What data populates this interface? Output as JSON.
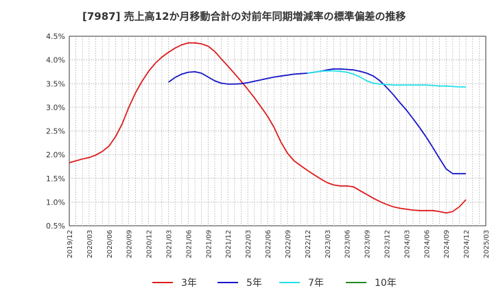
{
  "chart_data": {
    "type": "line",
    "title": "[7987]  売上高12か月移動合計の対前年同期増減率の標準偏差の推移",
    "xlabel": "",
    "ylabel": "",
    "ylim": [
      0.5,
      4.5
    ],
    "y_ticks": [
      "0.5%",
      "1.0%",
      "1.5%",
      "2.0%",
      "2.5%",
      "3.0%",
      "3.5%",
      "4.0%",
      "4.5%"
    ],
    "x_ticks": [
      "2019/12",
      "2020/03",
      "2020/06",
      "2020/09",
      "2020/12",
      "2021/03",
      "2021/06",
      "2021/09",
      "2021/12",
      "2022/03",
      "2022/06",
      "2022/09",
      "2022/12",
      "2023/03",
      "2023/06",
      "2023/09",
      "2023/12",
      "2024/03",
      "2024/06",
      "2024/09",
      "2024/12",
      "2025/03"
    ],
    "grid": true,
    "legend_position": "bottom",
    "series": [
      {
        "name": "3年",
        "color": "#dd1c1c",
        "x": [
          "2019/12",
          "2020/01",
          "2020/02",
          "2020/03",
          "2020/04",
          "2020/05",
          "2020/06",
          "2020/07",
          "2020/08",
          "2020/09",
          "2020/10",
          "2020/11",
          "2020/12",
          "2021/01",
          "2021/02",
          "2021/03",
          "2021/04",
          "2021/05",
          "2021/06",
          "2021/07",
          "2021/08",
          "2021/09",
          "2021/10",
          "2021/11",
          "2021/12",
          "2022/01",
          "2022/02",
          "2022/03",
          "2022/04",
          "2022/05",
          "2022/06",
          "2022/07",
          "2022/08",
          "2022/09",
          "2022/10",
          "2022/11",
          "2022/12",
          "2023/01",
          "2023/02",
          "2023/03",
          "2023/04",
          "2023/05",
          "2023/06",
          "2023/07",
          "2023/08",
          "2023/09",
          "2023/10",
          "2023/11",
          "2023/12",
          "2024/01",
          "2024/02",
          "2024/03",
          "2024/04",
          "2024/05",
          "2024/06",
          "2024/07",
          "2024/08",
          "2024/09",
          "2024/10",
          "2024/11",
          "2024/12"
        ],
        "values": [
          1.83,
          1.87,
          1.91,
          1.94,
          1.99,
          2.07,
          2.18,
          2.38,
          2.65,
          3.0,
          3.3,
          3.55,
          3.76,
          3.93,
          4.06,
          4.16,
          4.25,
          4.32,
          4.36,
          4.36,
          4.34,
          4.29,
          4.18,
          4.02,
          3.87,
          3.71,
          3.55,
          3.38,
          3.2,
          3.01,
          2.81,
          2.57,
          2.27,
          2.03,
          1.87,
          1.77,
          1.67,
          1.58,
          1.49,
          1.41,
          1.36,
          1.34,
          1.34,
          1.32,
          1.24,
          1.16,
          1.08,
          1.01,
          0.95,
          0.9,
          0.87,
          0.85,
          0.83,
          0.82,
          0.82,
          0.82,
          0.8,
          0.77,
          0.8,
          0.9,
          1.05
        ]
      },
      {
        "name": "5年",
        "color": "#1414c8",
        "x": [
          "2021/03",
          "2021/04",
          "2021/05",
          "2021/06",
          "2021/07",
          "2021/08",
          "2021/09",
          "2021/10",
          "2021/11",
          "2021/12",
          "2022/01",
          "2022/02",
          "2022/03",
          "2022/04",
          "2022/05",
          "2022/06",
          "2022/07",
          "2022/08",
          "2022/09",
          "2022/10",
          "2022/11",
          "2022/12",
          "2023/01",
          "2023/02",
          "2023/03",
          "2023/04",
          "2023/05",
          "2023/06",
          "2023/07",
          "2023/08",
          "2023/09",
          "2023/10",
          "2023/11",
          "2023/12",
          "2024/01",
          "2024/02",
          "2024/03",
          "2024/04",
          "2024/05",
          "2024/06",
          "2024/07",
          "2024/08",
          "2024/09",
          "2024/10",
          "2024/11",
          "2024/12"
        ],
        "values": [
          3.53,
          3.63,
          3.7,
          3.74,
          3.75,
          3.72,
          3.64,
          3.56,
          3.51,
          3.49,
          3.49,
          3.5,
          3.52,
          3.55,
          3.58,
          3.61,
          3.64,
          3.66,
          3.68,
          3.7,
          3.71,
          3.72,
          3.74,
          3.76,
          3.79,
          3.81,
          3.81,
          3.8,
          3.79,
          3.76,
          3.72,
          3.66,
          3.56,
          3.42,
          3.27,
          3.1,
          2.94,
          2.76,
          2.57,
          2.37,
          2.15,
          1.92,
          1.7,
          1.6,
          1.6,
          1.6
        ]
      },
      {
        "name": "7年",
        "color": "#22e0e8",
        "x": [
          "2022/12",
          "2023/01",
          "2023/02",
          "2023/03",
          "2023/04",
          "2023/05",
          "2023/06",
          "2023/07",
          "2023/08",
          "2023/09",
          "2023/10",
          "2023/11",
          "2023/12",
          "2024/01",
          "2024/02",
          "2024/03",
          "2024/04",
          "2024/05",
          "2024/06",
          "2024/07",
          "2024/08",
          "2024/09",
          "2024/10",
          "2024/11",
          "2024/12"
        ],
        "values": [
          3.72,
          3.74,
          3.76,
          3.77,
          3.77,
          3.76,
          3.74,
          3.7,
          3.64,
          3.56,
          3.51,
          3.49,
          3.48,
          3.47,
          3.47,
          3.47,
          3.47,
          3.47,
          3.47,
          3.46,
          3.45,
          3.45,
          3.44,
          3.43,
          3.43
        ]
      },
      {
        "name": "10年",
        "color": "#1e8c1e",
        "x": [],
        "values": []
      }
    ]
  }
}
